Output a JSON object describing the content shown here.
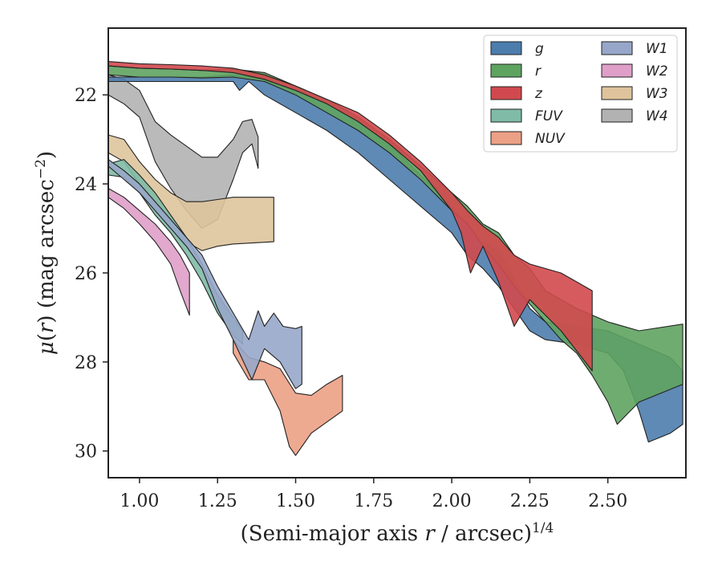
{
  "chart_data": {
    "type": "area",
    "xlabel": "(Semi-major axis r / arcsec)^1/4",
    "ylabel": "μ(r) (mag arcsec^−2)",
    "xlim": [
      0.9,
      2.75
    ],
    "ylim": [
      30.6,
      20.5
    ],
    "y_inverted": true,
    "x_ticks": [
      1.0,
      1.25,
      1.5,
      1.75,
      2.0,
      2.25,
      2.5
    ],
    "x_tick_labels": [
      "1.00",
      "1.25",
      "1.50",
      "1.75",
      "2.00",
      "2.25",
      "2.50"
    ],
    "y_ticks": [
      22,
      24,
      26,
      28,
      30
    ],
    "y_tick_labels": [
      "22",
      "24",
      "26",
      "28",
      "30"
    ],
    "legend_position": "top-right",
    "legend_columns": 2,
    "series": [
      {
        "name": "W4",
        "color": "#b2b2b2",
        "upper": [
          [
            0.9,
            21.55
          ],
          [
            0.95,
            21.65
          ],
          [
            1.0,
            21.9
          ],
          [
            1.05,
            22.6
          ],
          [
            1.1,
            22.9
          ],
          [
            1.15,
            23.15
          ],
          [
            1.2,
            23.4
          ],
          [
            1.25,
            23.4
          ],
          [
            1.3,
            23.0
          ],
          [
            1.33,
            22.6
          ],
          [
            1.36,
            22.55
          ],
          [
            1.38,
            22.95
          ]
        ],
        "lower": [
          [
            0.9,
            22.0
          ],
          [
            0.95,
            22.2
          ],
          [
            1.0,
            22.5
          ],
          [
            1.05,
            23.5
          ],
          [
            1.1,
            24.1
          ],
          [
            1.15,
            24.6
          ],
          [
            1.2,
            25.0
          ],
          [
            1.25,
            24.8
          ],
          [
            1.3,
            23.9
          ],
          [
            1.33,
            23.3
          ],
          [
            1.36,
            23.1
          ],
          [
            1.38,
            23.65
          ]
        ]
      },
      {
        "name": "W3",
        "color": "#dec49c",
        "upper": [
          [
            0.9,
            22.9
          ],
          [
            0.95,
            23.0
          ],
          [
            1.0,
            23.5
          ],
          [
            1.05,
            23.9
          ],
          [
            1.1,
            24.2
          ],
          [
            1.15,
            24.4
          ],
          [
            1.2,
            24.4
          ],
          [
            1.25,
            24.35
          ],
          [
            1.3,
            24.3
          ],
          [
            1.43,
            24.3
          ]
        ],
        "lower": [
          [
            0.9,
            23.3
          ],
          [
            0.95,
            23.5
          ],
          [
            1.0,
            24.0
          ],
          [
            1.05,
            24.4
          ],
          [
            1.1,
            24.9
          ],
          [
            1.15,
            25.3
          ],
          [
            1.2,
            25.5
          ],
          [
            1.25,
            25.4
          ],
          [
            1.3,
            25.35
          ],
          [
            1.43,
            25.3
          ]
        ]
      },
      {
        "name": "W2",
        "color": "#df9fc8",
        "upper": [
          [
            0.9,
            24.1
          ],
          [
            0.95,
            24.3
          ],
          [
            1.0,
            24.6
          ],
          [
            1.05,
            24.9
          ],
          [
            1.1,
            25.3
          ],
          [
            1.13,
            25.6
          ],
          [
            1.16,
            26.0
          ]
        ],
        "lower": [
          [
            0.9,
            24.3
          ],
          [
            0.95,
            24.55
          ],
          [
            1.0,
            24.9
          ],
          [
            1.05,
            25.3
          ],
          [
            1.1,
            25.8
          ],
          [
            1.13,
            26.4
          ],
          [
            1.16,
            26.95
          ]
        ]
      },
      {
        "name": "FUV",
        "color": "#7fbba6",
        "upper": [
          [
            0.9,
            23.55
          ],
          [
            0.95,
            23.45
          ],
          [
            1.0,
            23.8
          ],
          [
            1.05,
            24.2
          ],
          [
            1.1,
            24.7
          ],
          [
            1.15,
            25.2
          ],
          [
            1.2,
            25.8
          ],
          [
            1.25,
            26.5
          ],
          [
            1.3,
            27.0
          ],
          [
            1.33,
            27.3
          ]
        ],
        "lower": [
          [
            0.9,
            23.8
          ],
          [
            0.95,
            23.85
          ],
          [
            1.0,
            24.2
          ],
          [
            1.05,
            24.7
          ],
          [
            1.1,
            25.1
          ],
          [
            1.15,
            25.6
          ],
          [
            1.2,
            26.2
          ],
          [
            1.25,
            26.9
          ],
          [
            1.3,
            27.4
          ],
          [
            1.33,
            27.6
          ]
        ]
      },
      {
        "name": "NUV",
        "color": "#eca085",
        "upper": [
          [
            1.3,
            27.5
          ],
          [
            1.35,
            27.9
          ],
          [
            1.4,
            28.0
          ],
          [
            1.45,
            28.15
          ],
          [
            1.5,
            28.7
          ],
          [
            1.55,
            28.75
          ],
          [
            1.6,
            28.5
          ],
          [
            1.65,
            28.3
          ]
        ],
        "lower": [
          [
            1.3,
            27.8
          ],
          [
            1.35,
            28.4
          ],
          [
            1.4,
            28.4
          ],
          [
            1.45,
            29.1
          ],
          [
            1.48,
            29.9
          ],
          [
            1.5,
            30.1
          ],
          [
            1.55,
            29.6
          ],
          [
            1.6,
            29.35
          ],
          [
            1.65,
            29.1
          ]
        ]
      },
      {
        "name": "W1",
        "color": "#97a7c9",
        "upper": [
          [
            0.9,
            23.45
          ],
          [
            0.95,
            23.7
          ],
          [
            1.0,
            24.0
          ],
          [
            1.05,
            24.4
          ],
          [
            1.1,
            24.8
          ],
          [
            1.15,
            25.2
          ],
          [
            1.2,
            25.6
          ],
          [
            1.25,
            26.3
          ],
          [
            1.3,
            26.9
          ],
          [
            1.35,
            27.5
          ],
          [
            1.38,
            26.85
          ],
          [
            1.4,
            27.2
          ],
          [
            1.43,
            26.9
          ],
          [
            1.46,
            27.2
          ],
          [
            1.5,
            27.25
          ],
          [
            1.52,
            27.2
          ]
        ],
        "lower": [
          [
            0.9,
            23.6
          ],
          [
            0.95,
            23.9
          ],
          [
            1.0,
            24.2
          ],
          [
            1.05,
            24.6
          ],
          [
            1.1,
            25.0
          ],
          [
            1.15,
            25.4
          ],
          [
            1.2,
            25.9
          ],
          [
            1.25,
            26.8
          ],
          [
            1.3,
            27.5
          ],
          [
            1.36,
            28.4
          ],
          [
            1.4,
            27.7
          ],
          [
            1.45,
            28.0
          ],
          [
            1.5,
            28.6
          ],
          [
            1.52,
            28.5
          ]
        ]
      },
      {
        "name": "g",
        "color": "#4c7dad",
        "upper": [
          [
            0.9,
            21.6
          ],
          [
            1.0,
            21.6
          ],
          [
            1.1,
            21.6
          ],
          [
            1.2,
            21.6
          ],
          [
            1.3,
            21.55
          ],
          [
            1.35,
            21.6
          ],
          [
            1.4,
            21.65
          ],
          [
            1.5,
            21.9
          ],
          [
            1.6,
            22.2
          ],
          [
            1.7,
            22.6
          ],
          [
            1.8,
            23.1
          ],
          [
            1.9,
            23.8
          ],
          [
            2.0,
            24.5
          ],
          [
            2.05,
            24.9
          ],
          [
            2.1,
            25.3
          ],
          [
            2.15,
            25.5
          ],
          [
            2.2,
            26.1
          ],
          [
            2.25,
            26.8
          ],
          [
            2.3,
            27.1
          ],
          [
            2.4,
            27.2
          ],
          [
            2.5,
            27.3
          ],
          [
            2.6,
            27.6
          ],
          [
            2.7,
            27.9
          ],
          [
            2.74,
            28.2
          ]
        ],
        "lower": [
          [
            0.9,
            21.7
          ],
          [
            1.0,
            21.7
          ],
          [
            1.1,
            21.7
          ],
          [
            1.2,
            21.7
          ],
          [
            1.3,
            21.7
          ],
          [
            1.32,
            21.9
          ],
          [
            1.35,
            21.7
          ],
          [
            1.4,
            22.0
          ],
          [
            1.5,
            22.4
          ],
          [
            1.6,
            22.8
          ],
          [
            1.7,
            23.3
          ],
          [
            1.8,
            23.9
          ],
          [
            1.9,
            24.5
          ],
          [
            2.0,
            25.1
          ],
          [
            2.05,
            25.6
          ],
          [
            2.1,
            25.9
          ],
          [
            2.15,
            26.3
          ],
          [
            2.2,
            26.8
          ],
          [
            2.25,
            27.3
          ],
          [
            2.3,
            27.5
          ],
          [
            2.4,
            27.6
          ],
          [
            2.5,
            27.8
          ],
          [
            2.55,
            28.2
          ],
          [
            2.6,
            29.1
          ],
          [
            2.63,
            29.8
          ],
          [
            2.7,
            29.6
          ],
          [
            2.74,
            29.4
          ]
        ]
      },
      {
        "name": "r",
        "color": "#5fa361",
        "upper": [
          [
            0.9,
            21.35
          ],
          [
            1.0,
            21.4
          ],
          [
            1.1,
            21.42
          ],
          [
            1.2,
            21.45
          ],
          [
            1.3,
            21.42
          ],
          [
            1.4,
            21.5
          ],
          [
            1.5,
            21.8
          ],
          [
            1.6,
            22.1
          ],
          [
            1.7,
            22.5
          ],
          [
            1.8,
            23.0
          ],
          [
            1.9,
            23.6
          ],
          [
            2.0,
            24.2
          ],
          [
            2.05,
            24.5
          ],
          [
            2.1,
            24.9
          ],
          [
            2.15,
            25.1
          ],
          [
            2.2,
            25.6
          ],
          [
            2.25,
            25.9
          ],
          [
            2.3,
            26.4
          ],
          [
            2.4,
            26.8
          ],
          [
            2.5,
            27.1
          ],
          [
            2.6,
            27.3
          ],
          [
            2.74,
            27.15
          ]
        ],
        "lower": [
          [
            0.9,
            21.55
          ],
          [
            1.0,
            21.6
          ],
          [
            1.1,
            21.6
          ],
          [
            1.2,
            21.62
          ],
          [
            1.3,
            21.6
          ],
          [
            1.4,
            21.7
          ],
          [
            1.5,
            22.0
          ],
          [
            1.6,
            22.4
          ],
          [
            1.7,
            22.8
          ],
          [
            1.8,
            23.3
          ],
          [
            1.9,
            23.9
          ],
          [
            2.0,
            24.6
          ],
          [
            2.05,
            24.9
          ],
          [
            2.1,
            25.4
          ],
          [
            2.15,
            25.8
          ],
          [
            2.2,
            26.3
          ],
          [
            2.25,
            26.7
          ],
          [
            2.3,
            27.1
          ],
          [
            2.35,
            27.5
          ],
          [
            2.4,
            27.8
          ],
          [
            2.45,
            28.3
          ],
          [
            2.5,
            28.9
          ],
          [
            2.53,
            29.4
          ],
          [
            2.6,
            28.9
          ],
          [
            2.74,
            28.5
          ]
        ]
      },
      {
        "name": "z",
        "color": "#d1494e",
        "upper": [
          [
            0.9,
            21.25
          ],
          [
            1.0,
            21.3
          ],
          [
            1.1,
            21.32
          ],
          [
            1.2,
            21.35
          ],
          [
            1.3,
            21.4
          ],
          [
            1.4,
            21.55
          ],
          [
            1.5,
            21.8
          ],
          [
            1.6,
            22.1
          ],
          [
            1.7,
            22.4
          ],
          [
            1.8,
            22.9
          ],
          [
            1.9,
            23.5
          ],
          [
            2.0,
            24.2
          ],
          [
            2.05,
            24.6
          ],
          [
            2.1,
            24.95
          ],
          [
            2.15,
            25.2
          ],
          [
            2.2,
            25.6
          ],
          [
            2.25,
            25.8
          ],
          [
            2.35,
            26.0
          ],
          [
            2.45,
            26.4
          ]
        ],
        "lower": [
          [
            0.9,
            21.35
          ],
          [
            1.0,
            21.4
          ],
          [
            1.1,
            21.42
          ],
          [
            1.2,
            21.45
          ],
          [
            1.3,
            21.5
          ],
          [
            1.4,
            21.65
          ],
          [
            1.5,
            21.9
          ],
          [
            1.6,
            22.2
          ],
          [
            1.7,
            22.6
          ],
          [
            1.8,
            23.1
          ],
          [
            1.9,
            23.7
          ],
          [
            2.0,
            24.6
          ],
          [
            2.03,
            25.1
          ],
          [
            2.06,
            26.0
          ],
          [
            2.1,
            25.4
          ],
          [
            2.15,
            26.2
          ],
          [
            2.2,
            27.2
          ],
          [
            2.25,
            26.6
          ],
          [
            2.35,
            27.3
          ],
          [
            2.45,
            28.2
          ]
        ]
      }
    ],
    "legend_items": [
      {
        "label": "g",
        "color": "#4c7dad",
        "column": 0,
        "row": 0
      },
      {
        "label": "r",
        "color": "#5fa361",
        "column": 0,
        "row": 1
      },
      {
        "label": "z",
        "color": "#d1494e",
        "column": 0,
        "row": 2
      },
      {
        "label": "FUV",
        "color": "#7fbba6",
        "column": 0,
        "row": 3
      },
      {
        "label": "NUV",
        "color": "#eca085",
        "column": 0,
        "row": 4
      },
      {
        "label": "W1",
        "color": "#97a7c9",
        "column": 1,
        "row": 0
      },
      {
        "label": "W2",
        "color": "#df9fc8",
        "column": 1,
        "row": 1
      },
      {
        "label": "W3",
        "color": "#dec49c",
        "column": 1,
        "row": 2
      },
      {
        "label": "W4",
        "color": "#b2b2b2",
        "column": 1,
        "row": 3
      }
    ]
  }
}
